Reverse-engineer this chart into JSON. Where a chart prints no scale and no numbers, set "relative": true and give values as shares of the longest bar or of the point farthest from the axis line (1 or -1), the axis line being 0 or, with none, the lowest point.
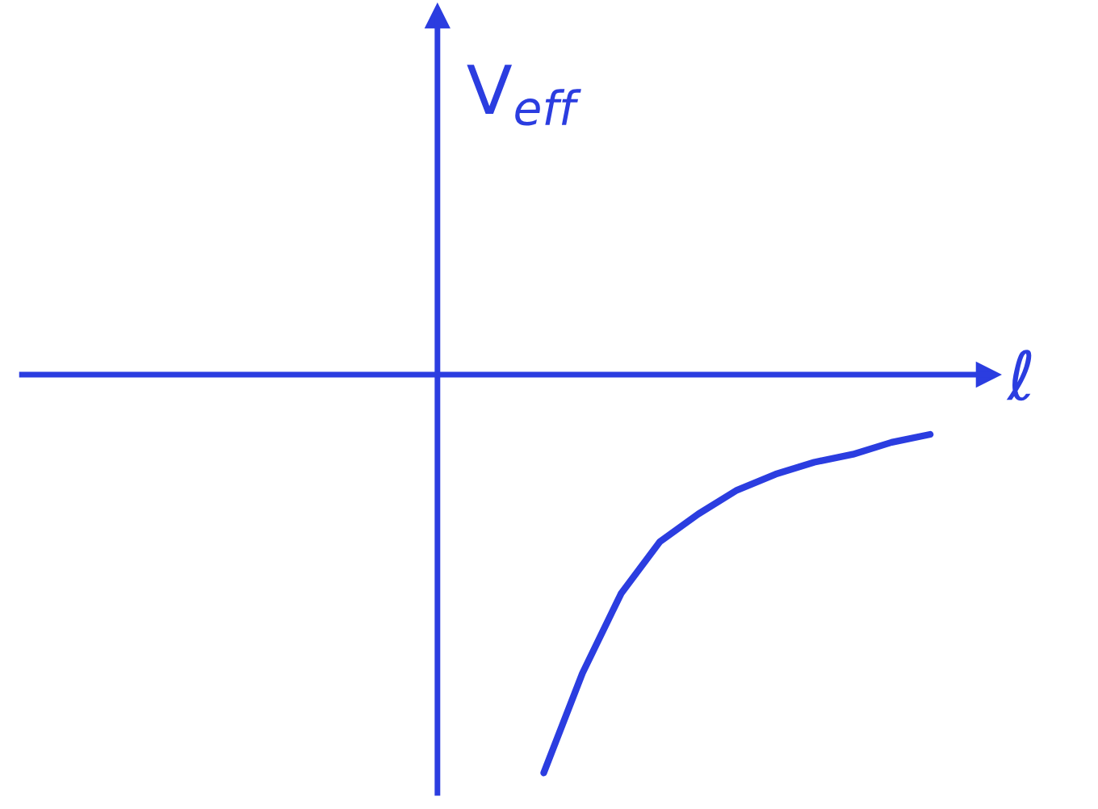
{
  "chart_data": {
    "type": "line",
    "relative": true,
    "xlabel": "ℓ",
    "ylabel": "V$_{eff}$",
    "marker": "none",
    "line_style": "solid",
    "categories": [
      null,
      null,
      null,
      null,
      null,
      null,
      null,
      null,
      null,
      null,
      null,
      null,
      null,
      null,
      null,
      null,
      null,
      null,
      null,
      null,
      null,
      null,
      null,
      null,
      null
    ],
    "series": [
      {
        "color": "#2b3de0",
        "values": [
          null,
          null,
          null,
          null,
          null,
          null,
          null,
          null,
          null,
          null,
          null,
          null,
          null,
          -1,
          -0.75,
          -0.55,
          -0.42,
          -0.35,
          -0.29,
          -0.25,
          -0.22,
          -0.2,
          -0.17,
          -0.15,
          null
        ]
      }
    ]
  }
}
